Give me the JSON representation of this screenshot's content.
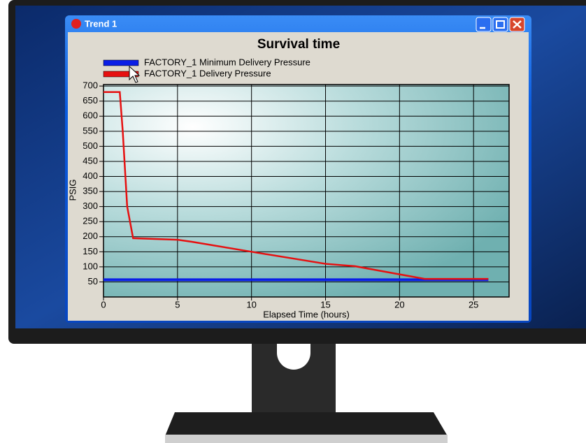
{
  "window": {
    "title": "Trend 1"
  },
  "chart_data": {
    "type": "line",
    "title": "Survival time",
    "x_label": "Elapsed Time (hours)",
    "y_label": "PSIG",
    "series": [
      {
        "name": "FACTORY_1 Minimum Delivery Pressure",
        "color": "#0a1ee6",
        "x": [
          0,
          26
        ],
        "values": [
          57,
          57
        ]
      },
      {
        "name": "FACTORY_1 Delivery Pressure",
        "color": "#e61010",
        "x": [
          0,
          1.1,
          1.3,
          1.6,
          2,
          5,
          6,
          10,
          15,
          17,
          20,
          21.7,
          26
        ],
        "values": [
          680,
          680,
          550,
          300,
          195,
          190,
          183,
          150,
          110,
          102,
          75,
          60,
          60
        ]
      }
    ],
    "xlim": [
      0,
      27.4
    ],
    "xticks": [
      0,
      5,
      10,
      15,
      20,
      25
    ],
    "ylim": [
      0,
      705
    ],
    "yticks": [
      50,
      100,
      150,
      200,
      250,
      300,
      350,
      400,
      450,
      500,
      550,
      600,
      650,
      700
    ],
    "grid": true,
    "legend": "top-left"
  }
}
